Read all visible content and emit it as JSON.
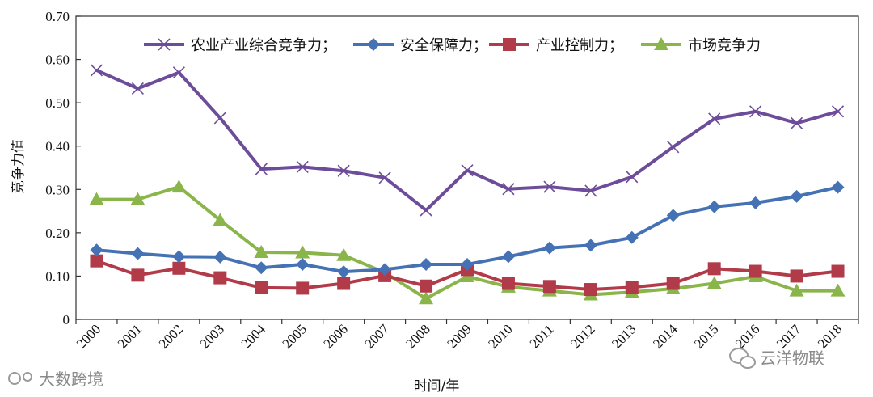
{
  "chart_data": {
    "type": "line",
    "title": "",
    "xlabel": "时间/年",
    "ylabel": "竞争力值",
    "ylim": [
      0,
      0.7
    ],
    "yticks": [
      "0",
      "0.10",
      "0.20",
      "0.30",
      "0.40",
      "0.50",
      "0.60",
      "0.70"
    ],
    "categories": [
      "2000",
      "2001",
      "2002",
      "2003",
      "2004",
      "2005",
      "2006",
      "2007",
      "2008",
      "2009",
      "2010",
      "2011",
      "2012",
      "2013",
      "2014",
      "2015",
      "2016",
      "2017",
      "2018"
    ],
    "series": [
      {
        "name": "农业产业综合竞争力；",
        "color": "#6d4c9a",
        "marker": "x",
        "values": [
          0.575,
          0.533,
          0.57,
          0.465,
          0.347,
          0.352,
          0.343,
          0.327,
          0.252,
          0.344,
          0.301,
          0.306,
          0.297,
          0.329,
          0.398,
          0.463,
          0.48,
          0.453,
          0.48
        ]
      },
      {
        "name": "安全保障力；",
        "color": "#4472b4",
        "marker": "diamond",
        "values": [
          0.16,
          0.152,
          0.145,
          0.144,
          0.119,
          0.127,
          0.11,
          0.115,
          0.127,
          0.127,
          0.145,
          0.165,
          0.171,
          0.189,
          0.24,
          0.26,
          0.269,
          0.284,
          0.305
        ]
      },
      {
        "name": "产业控制力；",
        "color": "#b23b4a",
        "marker": "square",
        "values": [
          0.135,
          0.102,
          0.118,
          0.096,
          0.073,
          0.072,
          0.083,
          0.101,
          0.077,
          0.115,
          0.083,
          0.076,
          0.069,
          0.074,
          0.083,
          0.117,
          0.111,
          0.1,
          0.111
        ]
      },
      {
        "name": "市场竞争力",
        "color": "#8ab54a",
        "marker": "triangle",
        "values": [
          0.277,
          0.277,
          0.306,
          0.229,
          0.155,
          0.154,
          0.148,
          0.108,
          0.048,
          0.099,
          0.075,
          0.066,
          0.057,
          0.063,
          0.071,
          0.083,
          0.099,
          0.066,
          0.066
        ]
      }
    ]
  },
  "watermarks": {
    "left": "大数跨境",
    "right": "云洋物联"
  }
}
